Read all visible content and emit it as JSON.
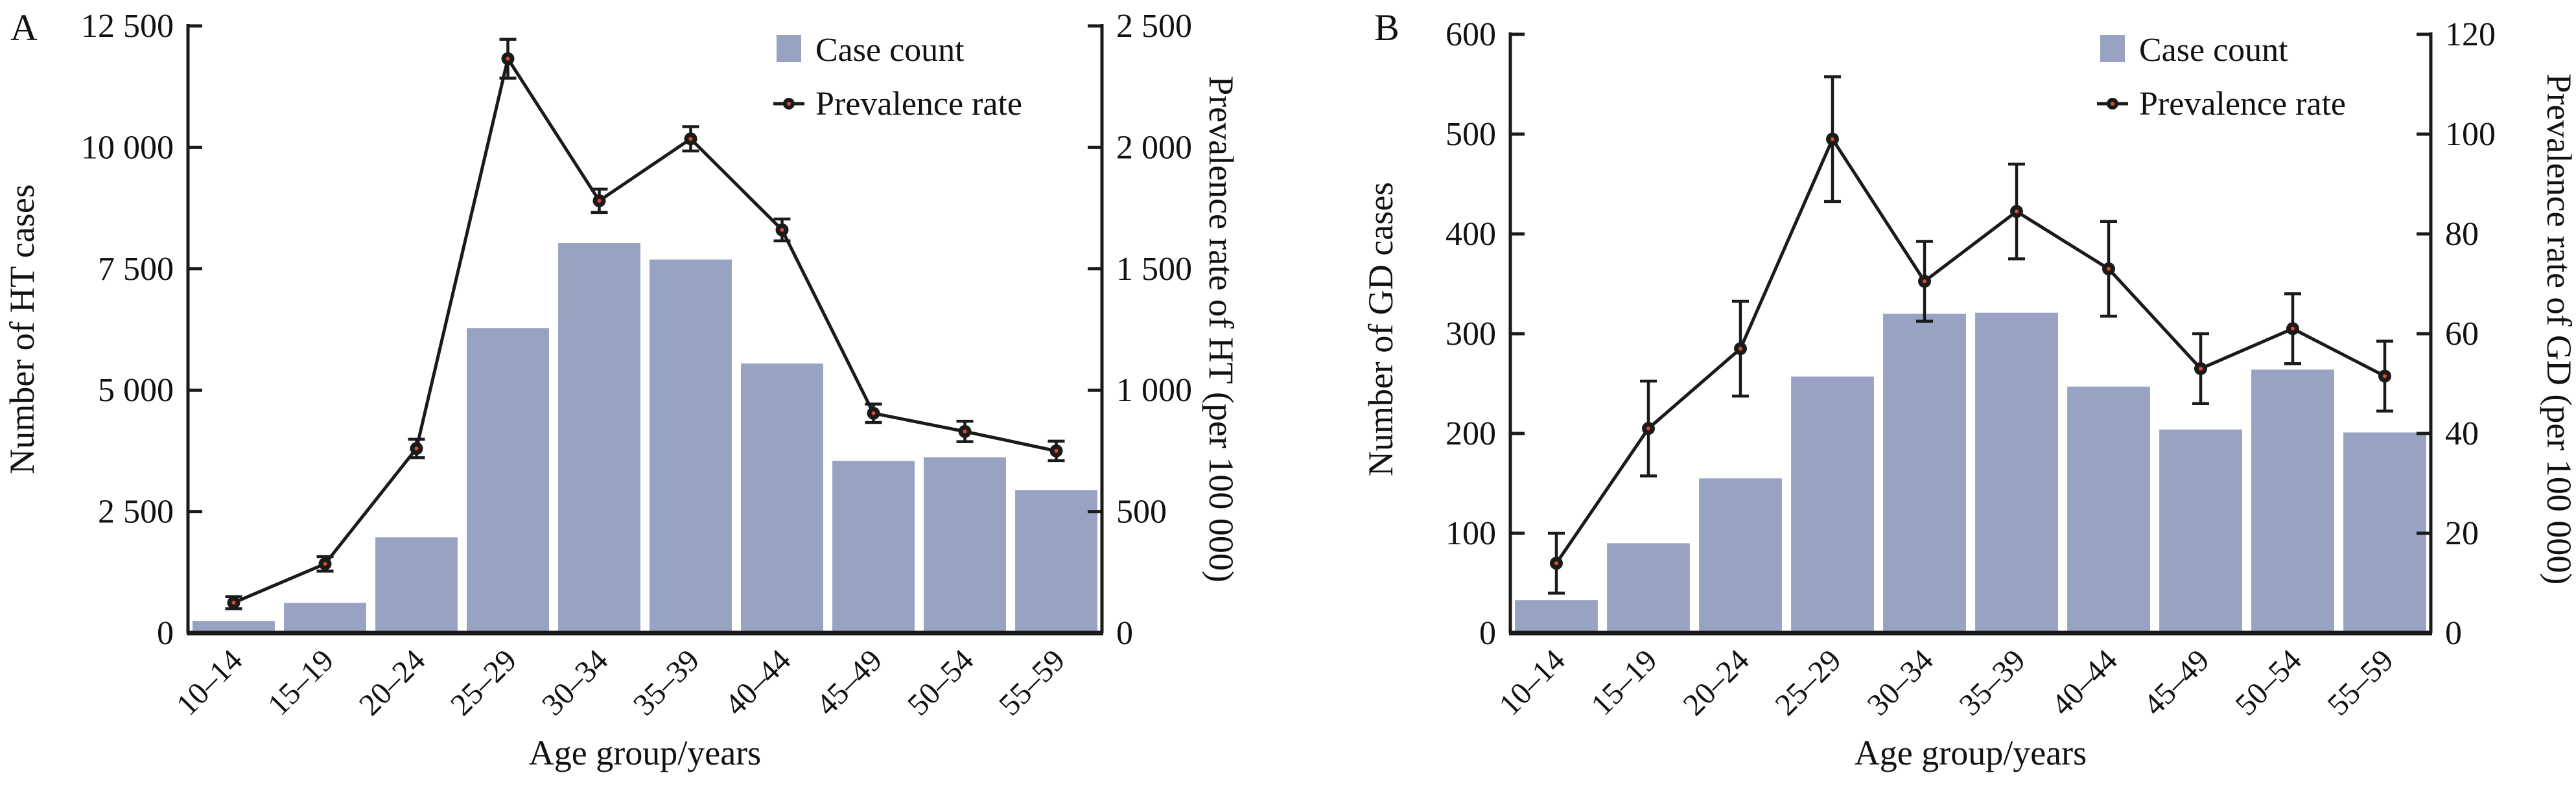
{
  "colors": {
    "bar_fill": "#98a2c3",
    "line": "#1a1a1a",
    "marker_fill": "#1a1a1a",
    "marker_center": "#e04a2e",
    "axis": "#1a1a1a",
    "text": "#111111"
  },
  "panels": [
    {
      "label": "A",
      "left_axis": {
        "title": "Number of HT cases",
        "tick_labels": [
          "0",
          "2 500",
          "5 000",
          "7 500",
          "10 000",
          "12 500"
        ]
      },
      "right_axis": {
        "title": "Prevalence rate of HT (per 100 000)",
        "tick_labels": [
          "0",
          "500",
          "1 000",
          "1 500",
          "2 000",
          "2 500"
        ]
      },
      "x_axis": {
        "title": "Age group/years"
      },
      "legend": {
        "case_count": "Case count",
        "prevalence": "Prevalence rate"
      }
    },
    {
      "label": "B",
      "left_axis": {
        "title": "Number of GD cases",
        "tick_labels": [
          "0",
          "100",
          "200",
          "300",
          "400",
          "500",
          "600"
        ]
      },
      "right_axis": {
        "title": "Prevalence rate of GD (per 100 000)",
        "tick_labels": [
          "0",
          "20",
          "40",
          "60",
          "80",
          "100",
          "120"
        ]
      },
      "x_axis": {
        "title": "Age group/years"
      },
      "legend": {
        "case_count": "Case count",
        "prevalence": "Prevalence rate"
      }
    }
  ],
  "chart_data": [
    {
      "type": "bar",
      "panel": "A",
      "title": "",
      "xlabel": "Age group/years",
      "ylabel_left": "Number of HT cases",
      "ylabel_right": "Prevalence rate of HT (per 100 000)",
      "ylim_left": [
        0,
        12500
      ],
      "ylim_right": [
        0,
        2500
      ],
      "grid": false,
      "legend_position": "top-right",
      "categories": [
        "10–14",
        "15–19",
        "20–24",
        "25–29",
        "30–34",
        "35–39",
        "40–44",
        "45–49",
        "50–54",
        "55–59"
      ],
      "left_tick_labels": [
        "0",
        "2 500",
        "5 000",
        "7 500",
        "10 000",
        "12 500"
      ],
      "right_tick_labels": [
        "0",
        "500",
        "1 000",
        "1 500",
        "2 000",
        "2 500"
      ],
      "series": [
        {
          "name": "Case count",
          "type": "bar",
          "axis": "left",
          "values": [
            250,
            620,
            1970,
            6280,
            8030,
            7690,
            5550,
            3545,
            3620,
            2945
          ]
        },
        {
          "name": "Prevalence rate",
          "type": "line",
          "axis": "right",
          "values": [
            125,
            285,
            760,
            2365,
            1780,
            2035,
            1660,
            905,
            830,
            750
          ],
          "errors": [
            25,
            30,
            38,
            80,
            48,
            50,
            45,
            38,
            42,
            40
          ]
        }
      ]
    },
    {
      "type": "bar",
      "panel": "B",
      "title": "",
      "xlabel": "Age group/years",
      "ylabel_left": "Number of GD cases",
      "ylabel_right": "Prevalence rate of GD (per 100 000)",
      "ylim_left": [
        0,
        600
      ],
      "ylim_right": [
        0,
        120
      ],
      "grid": false,
      "legend_position": "top-right",
      "categories": [
        "10–14",
        "15–19",
        "20–24",
        "25–29",
        "30–34",
        "35–39",
        "40–44",
        "45–49",
        "50–54",
        "55–59"
      ],
      "left_tick_labels": [
        "0",
        "100",
        "200",
        "300",
        "400",
        "500",
        "600"
      ],
      "right_tick_labels": [
        "0",
        "20",
        "40",
        "60",
        "80",
        "100",
        "120"
      ],
      "series": [
        {
          "name": "Case count",
          "type": "bar",
          "axis": "left",
          "values": [
            33,
            90,
            155,
            257,
            320,
            321,
            247,
            204,
            264,
            201
          ]
        },
        {
          "name": "Prevalence rate",
          "type": "line",
          "axis": "right",
          "values": [
            14,
            41,
            57,
            99,
            70.5,
            84.5,
            73,
            53,
            61,
            51.5
          ],
          "errors": [
            6,
            9.5,
            9.5,
            12.5,
            8,
            9.5,
            9.5,
            7,
            7,
            7
          ]
        }
      ]
    }
  ]
}
